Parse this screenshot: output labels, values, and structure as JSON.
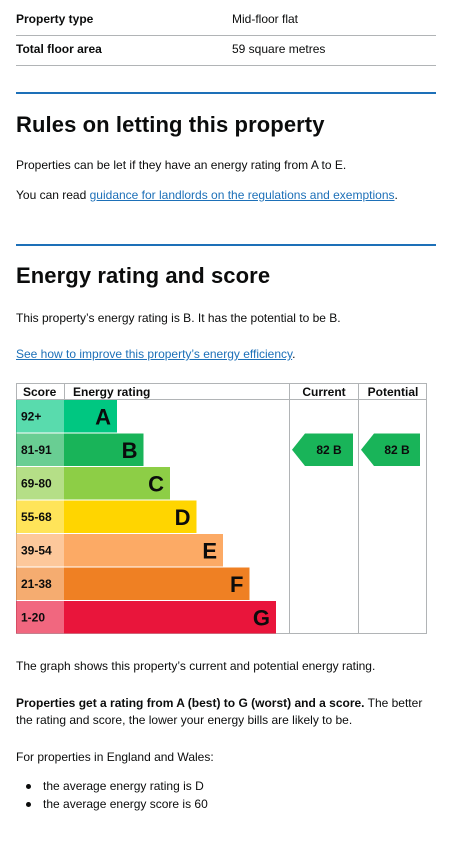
{
  "summary": {
    "rows": [
      {
        "label": "Property type",
        "value": "Mid-floor flat"
      },
      {
        "label": "Total floor area",
        "value": "59 square metres"
      }
    ]
  },
  "rules": {
    "heading": "Rules on letting this property",
    "paragraph1": "Properties can be let if they have an energy rating from A to E.",
    "paragraph2_prefix": "You can read ",
    "paragraph2_link": "guidance for landlords on the regulations and exemptions",
    "paragraph2_suffix": "."
  },
  "energy": {
    "heading": "Energy rating and score",
    "statement": "This property’s energy rating is B. It has the potential to be B.",
    "improve_link": "See how to improve this property’s energy efficiency",
    "improve_suffix": "."
  },
  "chart_data": {
    "type": "bar",
    "headers": {
      "score": "Score",
      "rating": "Energy rating",
      "current": "Current",
      "potential": "Potential"
    },
    "bands": [
      {
        "range": "92+",
        "letter": "A",
        "color": "#00c781"
      },
      {
        "range": "81-91",
        "letter": "B",
        "color": "#19b459"
      },
      {
        "range": "69-80",
        "letter": "C",
        "color": "#8dce46"
      },
      {
        "range": "55-68",
        "letter": "D",
        "color": "#ffd500"
      },
      {
        "range": "39-54",
        "letter": "E",
        "color": "#fcaa65"
      },
      {
        "range": "21-38",
        "letter": "F",
        "color": "#ef8023"
      },
      {
        "range": "1-20",
        "letter": "G",
        "color": "#e9153b"
      }
    ],
    "current": {
      "score": 82,
      "letter": "B",
      "label": "82 B",
      "color": "#19b459"
    },
    "potential": {
      "score": 82,
      "letter": "B",
      "label": "82 B",
      "color": "#19b459"
    }
  },
  "explanation": {
    "graph_text": "The graph shows this property’s current and potential energy rating.",
    "bold_text": "Properties get a rating from A (best) to G (worst) and a score.",
    "rest_text": " The better the rating and score, the lower your energy bills are likely to be.",
    "average_intro": "For properties in England and Wales:",
    "average_items": [
      "the average energy rating is D",
      "the average energy score is 60"
    ]
  }
}
